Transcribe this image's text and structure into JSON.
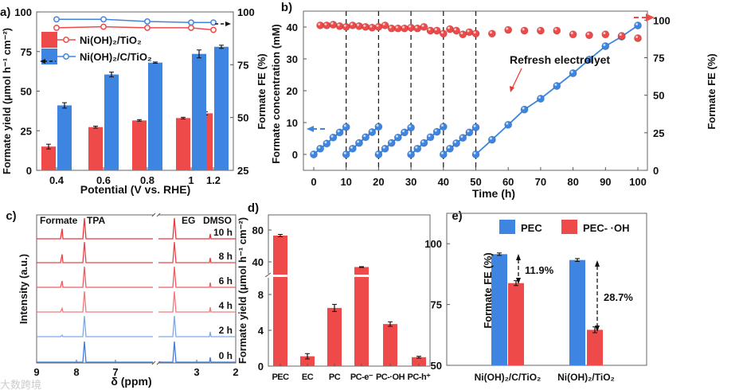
{
  "chart_data": [
    {
      "panel": "a)",
      "type": "bar",
      "xlabel": "Potential (V vs. RHE)",
      "ylabel": "Formate yield (μmol h⁻¹ cm⁻²)",
      "y2label": "Formate FE (%)",
      "categories": [
        "0.4",
        "0.6",
        "0.8",
        "1",
        "1.2"
      ],
      "ylim": [
        0,
        100
      ],
      "yticks": [
        0,
        25,
        50,
        75,
        100
      ],
      "y2lim": [
        25,
        100
      ],
      "y2ticks": [
        25,
        50,
        75,
        100
      ],
      "series": [
        {
          "name": "Ni(OH)₂/TiO₂",
          "color": "#ee4a4a",
          "values": [
            15,
            27.3,
            31.5,
            33,
            36
          ],
          "errors": [
            1.5,
            0.6,
            0.5,
            0.5,
            1
          ],
          "fe": [
            92.5,
            93,
            92.5,
            92.5,
            91.5
          ]
        },
        {
          "name": "Ni(OH)₂/C/TiO₂",
          "color": "#3d85e0",
          "values": [
            41,
            60.5,
            68,
            73.5,
            78
          ],
          "errors": [
            1.7,
            1.5,
            0.4,
            2.5,
            1
          ],
          "fe": [
            96.5,
            96.5,
            95.5,
            95,
            95
          ]
        }
      ]
    },
    {
      "panel": "b)",
      "type": "scatter",
      "xlabel": "Time (h)",
      "ylabel": "Formate concentration (mM)",
      "y2label": "Formate FE (%)",
      "xlim": [
        0,
        100
      ],
      "xticks": [
        0,
        10,
        20,
        30,
        40,
        50,
        60,
        70,
        80,
        90,
        100
      ],
      "ylim": [
        -5,
        45
      ],
      "yticks": [
        0,
        10,
        20,
        30,
        40
      ],
      "y2lim": [
        0,
        106
      ],
      "y2ticks": [
        0,
        25,
        50,
        75,
        100
      ],
      "annotation": "Refresh electrolyet",
      "refresh_times": [
        10,
        20,
        30,
        40,
        50
      ],
      "concentration": {
        "color": "#3d85e0",
        "segments": [
          {
            "x": [
              0,
              2,
              4,
              6,
              8,
              10
            ],
            "y": [
              0,
              1.8,
              3.4,
              5.3,
              6.9,
              8.6
            ]
          },
          {
            "x": [
              10,
              12,
              14,
              16,
              18,
              20
            ],
            "y": [
              0,
              1.8,
              3.6,
              5.4,
              7,
              8.7
            ]
          },
          {
            "x": [
              20,
              22,
              24,
              26,
              28,
              30
            ],
            "y": [
              0,
              1.8,
              3.6,
              5.3,
              6.9,
              8.4
            ]
          },
          {
            "x": [
              30,
              32,
              34,
              36,
              38,
              40
            ],
            "y": [
              0,
              1.8,
              3.6,
              5.4,
              7.1,
              8.7
            ]
          },
          {
            "x": [
              40,
              42,
              44,
              46,
              48,
              50
            ],
            "y": [
              0,
              1.8,
              3.5,
              5.2,
              6.9,
              8.5
            ]
          },
          {
            "x": [
              50,
              55,
              60,
              65,
              70,
              75,
              80,
              85,
              90,
              95,
              100
            ],
            "y": [
              0,
              4.6,
              9.3,
              14.1,
              17.5,
              21.5,
              25.5,
              29.8,
              34,
              37,
              40.5
            ]
          }
        ]
      },
      "fe": {
        "color": "#ee4a4a",
        "x": [
          2,
          4,
          6,
          8,
          10,
          12,
          14,
          16,
          18,
          20,
          22,
          24,
          26,
          28,
          30,
          32,
          34,
          36,
          38,
          40,
          42,
          44,
          46,
          48,
          50,
          55,
          60,
          65,
          70,
          75,
          80,
          85,
          90,
          95,
          100
        ],
        "y": [
          96.5,
          96.5,
          97,
          96,
          95.5,
          96.5,
          96,
          95.5,
          95,
          95.5,
          96.5,
          94.5,
          94.5,
          94.5,
          95,
          94.5,
          95.5,
          93,
          93,
          91,
          94,
          93,
          90.5,
          92,
          91,
          91,
          93.5,
          93,
          93,
          93,
          90.5,
          90,
          90.5,
          89.5,
          88
        ]
      }
    },
    {
      "panel": "c)",
      "type": "line",
      "xlabel": "δ (ppm)",
      "ylabel": "Intensity (a.u.)",
      "xticks": [
        "9",
        "8",
        "7",
        "3",
        "2"
      ],
      "peak_labels": [
        "Formate",
        "TPA",
        "EG",
        "DMSO"
      ],
      "traces": [
        {
          "label": "10 h",
          "color": "#e8383d",
          "formate_peak": 0.42
        },
        {
          "label": "8 h",
          "color": "#e8474b",
          "formate_peak": 0.35
        },
        {
          "label": "6 h",
          "color": "#ec5e61",
          "formate_peak": 0.27
        },
        {
          "label": "4 h",
          "color": "#f07a7c",
          "formate_peak": 0.15
        },
        {
          "label": "2 h",
          "color": "#7fa9e8",
          "formate_peak": 0.06
        },
        {
          "label": "0 h",
          "color": "#3d7fde",
          "formate_peak": 0
        }
      ]
    },
    {
      "panel": "d)",
      "type": "bar",
      "ylabel": "Formate yield (μmol h⁻¹ cm⁻²)",
      "categories": [
        "PEC",
        "EC",
        "PC",
        "PC-e⁻",
        "PC-·OH",
        "PC-h⁺"
      ],
      "values": [
        73,
        1.1,
        6.5,
        33.5,
        4.7,
        1.0
      ],
      "errors": [
        1.5,
        0.3,
        0.4,
        0.5,
        0.25,
        0.1
      ],
      "yticks": [
        "0",
        "4",
        "8",
        "40",
        "80"
      ],
      "ylim_lower": [
        0,
        10
      ],
      "ylim_upper": [
        22,
        98
      ],
      "color": "#ee4a4a"
    },
    {
      "panel": "e)",
      "type": "bar",
      "ylabel": "Formate FE (%)",
      "categories": [
        "Ni(OH)₂/C/TiO₂",
        "Ni(OH)₂/TiO₂"
      ],
      "ylim": [
        50,
        112.5
      ],
      "yticks": [
        50,
        75,
        100
      ],
      "series": [
        {
          "name": "PEC",
          "color": "#3d85e0",
          "values": [
            95.7,
            93.3
          ],
          "errors": [
            0.5,
            0.6
          ]
        },
        {
          "name": "PEC- ·OH",
          "color": "#ee4a4a",
          "values": [
            83.8,
            64.6
          ],
          "errors": [
            1,
            1.2
          ]
        }
      ],
      "annotations": [
        "11.9%",
        "28.7%"
      ]
    }
  ],
  "watermark": "大数跨境"
}
